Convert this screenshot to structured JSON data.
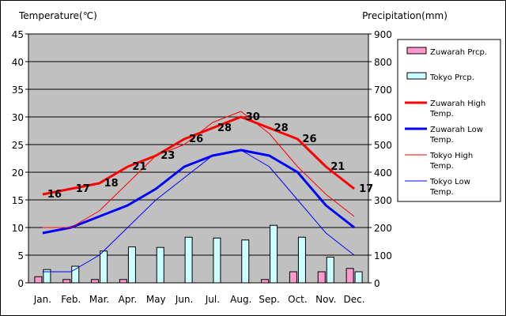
{
  "chart_data": {
    "type": "bar+line",
    "title": "",
    "left_axis": {
      "label": "Temperature(℃)",
      "ylim": [
        0,
        45
      ],
      "ticks": [
        0,
        5,
        10,
        15,
        20,
        25,
        30,
        35,
        40,
        45
      ]
    },
    "right_axis": {
      "label": "Precipitation(mm)",
      "ylim": [
        0,
        900
      ],
      "ticks": [
        0,
        100,
        200,
        300,
        400,
        500,
        600,
        700,
        800,
        900
      ]
    },
    "categories": [
      "Jan.",
      "Feb.",
      "Mar.",
      "Apr.",
      "May",
      "Jun.",
      "Jul.",
      "Aug.",
      "Sep.",
      "Oct.",
      "Nov.",
      "Dec."
    ],
    "grid": "horizontal",
    "legend_position": "right",
    "bar_series": [
      {
        "name": "Zuwarah Prcp.",
        "axis": "right",
        "color": "#ff99cc",
        "values": [
          22,
          12,
          12,
          12,
          0,
          0,
          0,
          0,
          12,
          40,
          40,
          52
        ]
      },
      {
        "name": "Tokyo Prcp.",
        "axis": "right",
        "color": "#ccffff",
        "values": [
          48,
          60,
          115,
          130,
          128,
          165,
          162,
          155,
          208,
          165,
          93,
          40
        ]
      }
    ],
    "line_series": [
      {
        "name": "Zuwarah High Temp.",
        "axis": "left",
        "color": "#ff0000",
        "width": 3,
        "values": [
          16,
          17,
          18,
          21,
          23,
          26,
          28,
          30,
          28,
          26,
          21,
          17
        ],
        "labels": [
          "16",
          "17",
          "18",
          "21",
          "23",
          "26",
          "28",
          "30",
          "28",
          "26",
          "21",
          "17"
        ]
      },
      {
        "name": "Zuwarah Low Temp.",
        "axis": "left",
        "color": "#0000ff",
        "width": 3,
        "values": [
          9,
          10,
          12,
          14,
          17,
          21,
          23,
          24,
          23,
          20,
          14,
          10
        ]
      },
      {
        "name": "Tokyo High Temp.",
        "axis": "left",
        "color": "#ff0000",
        "width": 1,
        "values": [
          10,
          10,
          13,
          18,
          23,
          25,
          29,
          31,
          27,
          21,
          16,
          12
        ]
      },
      {
        "name": "Tokyo Low Temp.",
        "axis": "left",
        "color": "#0000ff",
        "width": 1,
        "values": [
          2,
          2,
          5,
          10,
          15,
          19,
          23,
          24,
          21,
          15,
          9,
          5
        ]
      }
    ],
    "legend": [
      {
        "label_lines": [
          "Zuwarah Prcp."
        ],
        "kind": "bar",
        "color": "#ff99cc"
      },
      {
        "label_lines": [
          "Tokyo Prcp."
        ],
        "kind": "bar",
        "color": "#ccffff"
      },
      {
        "label_lines": [
          "Zuwarah High",
          "Temp."
        ],
        "kind": "line",
        "color": "#ff0000",
        "width": 3
      },
      {
        "label_lines": [
          "Zuwarah Low",
          "Temp."
        ],
        "kind": "line",
        "color": "#0000ff",
        "width": 3
      },
      {
        "label_lines": [
          "Tokyo High",
          "Temp."
        ],
        "kind": "line",
        "color": "#ff0000",
        "width": 1
      },
      {
        "label_lines": [
          "Tokyo Low",
          "Temp."
        ],
        "kind": "line",
        "color": "#0000ff",
        "width": 1
      }
    ]
  }
}
